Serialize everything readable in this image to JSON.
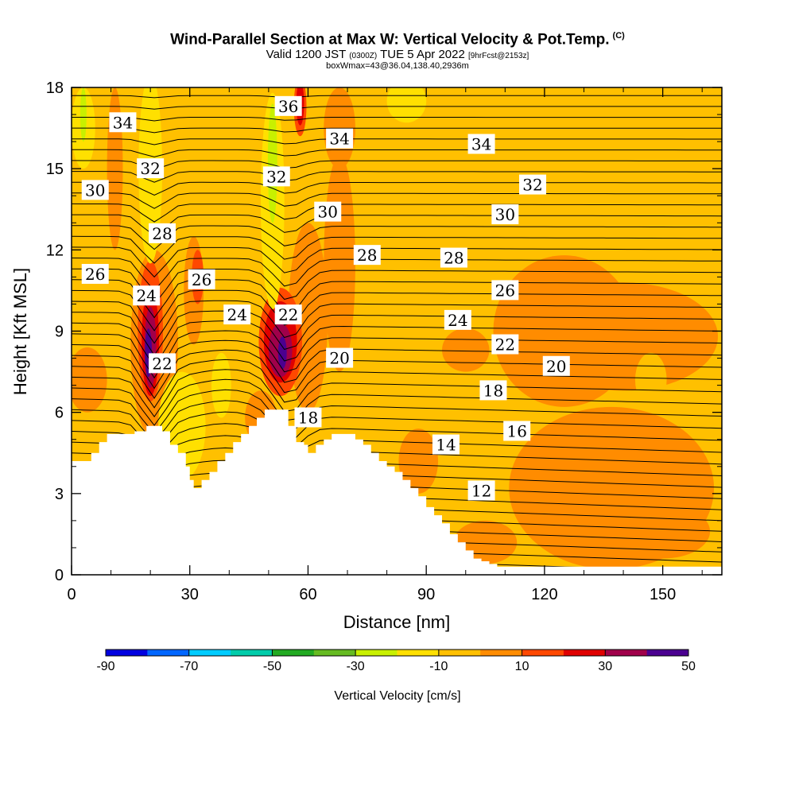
{
  "header": {
    "title": "Wind-Parallel Section at Max W: Vertical Velocity & Pot.Temp.",
    "copyright": "(C)",
    "valid_prefix": "Valid 1200 JST",
    "valid_z": "(0300Z)",
    "valid_date": "TUE 5 Apr 2022",
    "forecast": "[9hrFcst@2153z]",
    "box_info": "boxWmax=43@36.04,138.40,2936m"
  },
  "colors": {
    "background_field": "#ffc000",
    "updraft_10": "#ff8c00",
    "updraft_20": "#ff4800",
    "updraft_30": "#e00000",
    "updraft_40": "#a0004a",
    "updraft_50": "#4a0090",
    "downdraft_10": "#ffe000",
    "downdraft_20": "#c8f000",
    "terrain": "#ffffff",
    "contour": "#000000"
  },
  "chart_data": {
    "type": "heatmap",
    "xlabel": "Distance [nm]",
    "ylabel": "Height [Kft MSL]",
    "xlim": [
      0,
      165
    ],
    "ylim": [
      0,
      18
    ],
    "x_ticks": [
      0,
      30,
      60,
      90,
      120,
      150
    ],
    "y_ticks": [
      0,
      3,
      6,
      9,
      12,
      15,
      18
    ],
    "colorbar": {
      "title": "Vertical Velocity [cm/s]",
      "levels": [
        -90,
        -80,
        -70,
        -60,
        -50,
        -40,
        -30,
        -20,
        -10,
        0,
        10,
        20,
        30,
        40,
        50
      ],
      "tick_labels": [
        "-90",
        "-70",
        "-50",
        "-30",
        "-10",
        "10",
        "30",
        "50"
      ],
      "colors": [
        "#0000e0",
        "#0066ff",
        "#00ccff",
        "#00ccaa",
        "#22aa22",
        "#66bb22",
        "#c8f000",
        "#ffe000",
        "#ffc000",
        "#ff8c00",
        "#ff4800",
        "#e00000",
        "#a0004a",
        "#4a0090"
      ]
    },
    "terrain_profile": {
      "x": [
        0,
        3,
        5,
        7,
        9,
        12,
        14,
        16,
        19,
        21,
        23,
        25,
        27,
        29,
        30,
        31,
        33,
        35,
        37,
        39,
        41,
        43,
        45,
        47,
        49,
        51,
        53,
        55,
        57,
        59,
        60,
        62,
        64,
        66,
        68,
        70,
        72,
        74,
        76,
        78,
        80,
        82,
        84,
        86,
        88,
        90,
        92,
        94,
        96,
        98,
        100,
        102,
        104,
        106,
        108,
        110,
        165
      ],
      "height": [
        4.2,
        4.2,
        4.5,
        4.9,
        5.2,
        5.2,
        5.2,
        5.3,
        5.5,
        5.5,
        5.3,
        4.8,
        4.5,
        4.0,
        3.5,
        3.2,
        3.5,
        3.8,
        4.2,
        4.5,
        4.9,
        5.2,
        5.5,
        5.8,
        6.1,
        6.1,
        6.1,
        5.5,
        4.9,
        4.8,
        4.5,
        4.8,
        5.0,
        5.2,
        5.2,
        5.2,
        5.0,
        4.8,
        4.5,
        4.2,
        4.0,
        3.8,
        3.5,
        3.2,
        2.9,
        2.5,
        2.2,
        1.9,
        1.5,
        1.2,
        0.9,
        0.6,
        0.5,
        0.4,
        0.3,
        0.3,
        0.3
      ]
    },
    "theta_contour_labels": [
      {
        "value": "36",
        "x": 55,
        "y": 17.3
      },
      {
        "value": "34",
        "x": 13,
        "y": 16.7
      },
      {
        "value": "34",
        "x": 68,
        "y": 16.1
      },
      {
        "value": "34",
        "x": 104,
        "y": 15.9
      },
      {
        "value": "32",
        "x": 20,
        "y": 15.0
      },
      {
        "value": "32",
        "x": 52,
        "y": 14.7
      },
      {
        "value": "32",
        "x": 117,
        "y": 14.4
      },
      {
        "value": "30",
        "x": 6,
        "y": 14.2
      },
      {
        "value": "30",
        "x": 65,
        "y": 13.4
      },
      {
        "value": "30",
        "x": 110,
        "y": 13.3
      },
      {
        "value": "28",
        "x": 23,
        "y": 12.6
      },
      {
        "value": "28",
        "x": 75,
        "y": 11.8
      },
      {
        "value": "28",
        "x": 97,
        "y": 11.7
      },
      {
        "value": "26",
        "x": 6,
        "y": 11.1
      },
      {
        "value": "26",
        "x": 33,
        "y": 10.9
      },
      {
        "value": "26",
        "x": 110,
        "y": 10.5
      },
      {
        "value": "24",
        "x": 19,
        "y": 10.3
      },
      {
        "value": "24",
        "x": 42,
        "y": 9.6
      },
      {
        "value": "24",
        "x": 98,
        "y": 9.4
      },
      {
        "value": "22",
        "x": 55,
        "y": 9.6
      },
      {
        "value": "22",
        "x": 23,
        "y": 7.8
      },
      {
        "value": "22",
        "x": 110,
        "y": 8.5
      },
      {
        "value": "20",
        "x": 68,
        "y": 8.0
      },
      {
        "value": "20",
        "x": 123,
        "y": 7.7
      },
      {
        "value": "18",
        "x": 60,
        "y": 5.8
      },
      {
        "value": "18",
        "x": 107,
        "y": 6.8
      },
      {
        "value": "16",
        "x": 113,
        "y": 5.3
      },
      {
        "value": "14",
        "x": 95,
        "y": 4.8
      },
      {
        "value": "12",
        "x": 104,
        "y": 3.1
      }
    ]
  }
}
